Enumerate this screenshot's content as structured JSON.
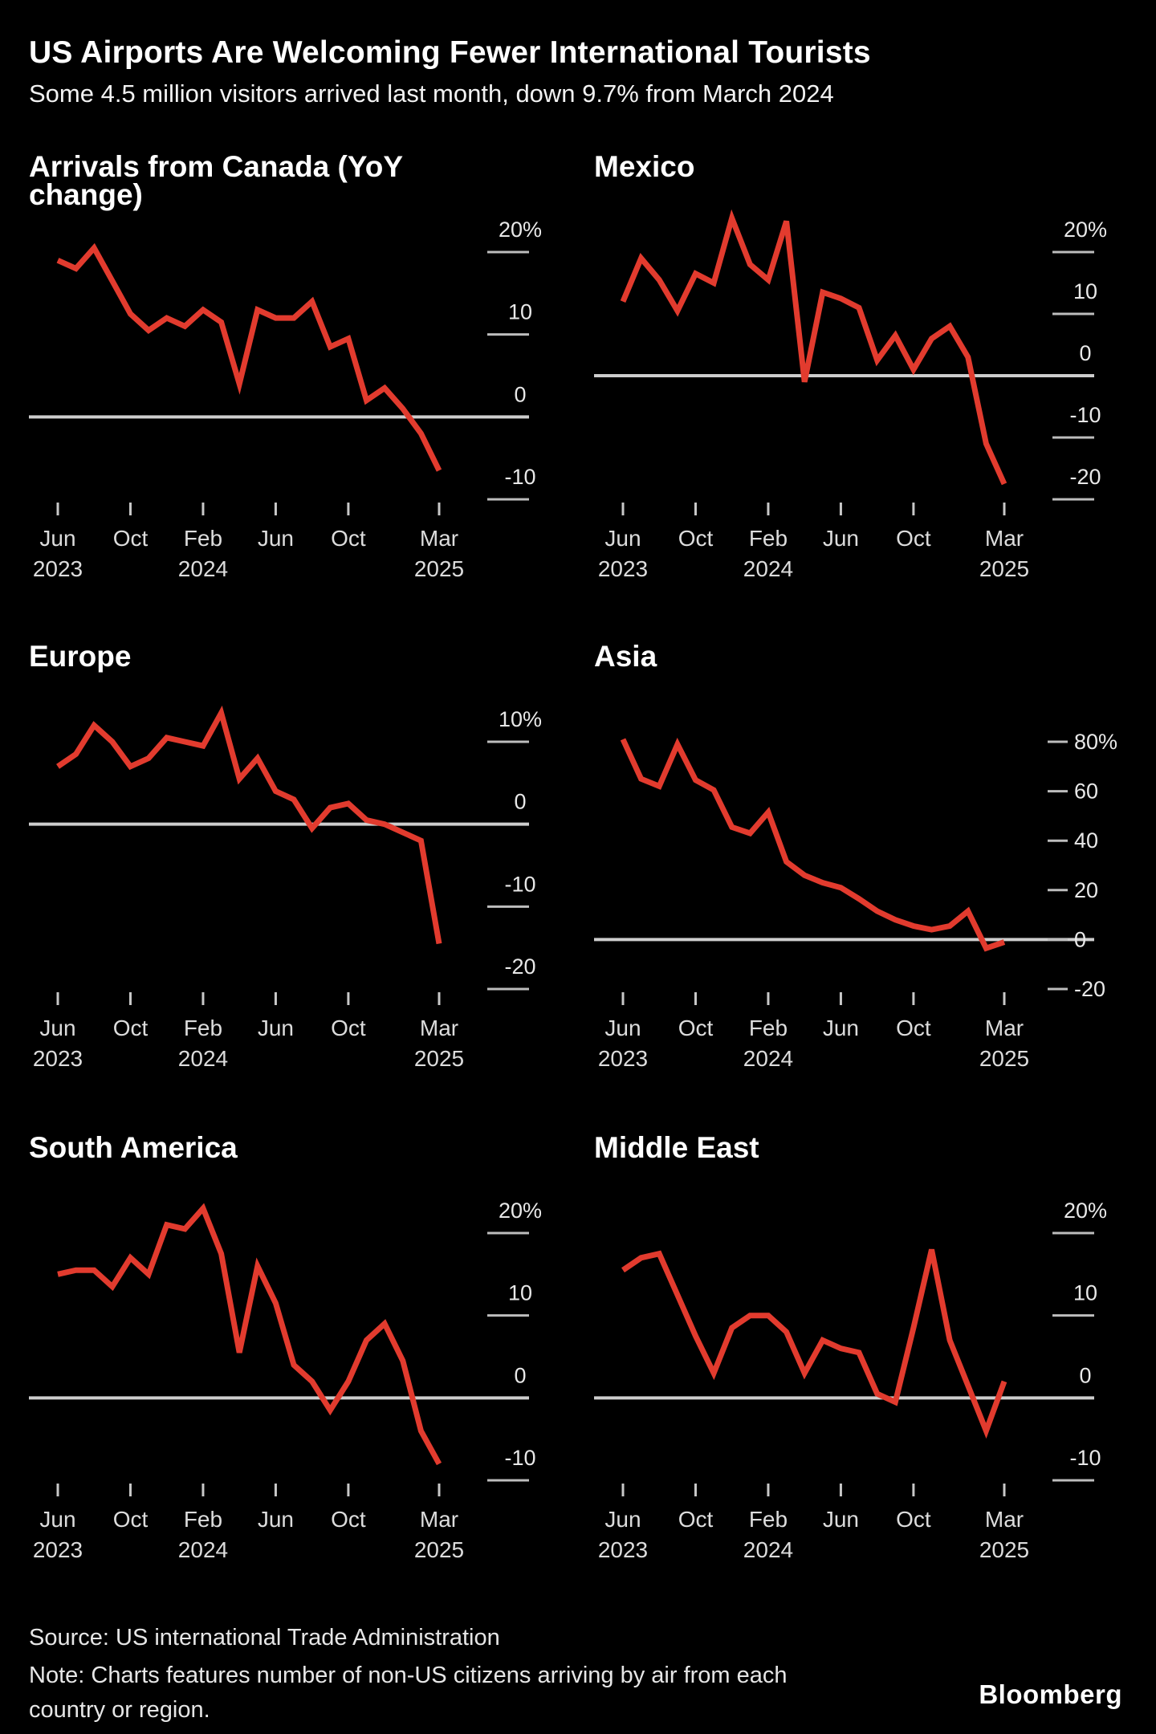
{
  "header": {
    "title": "US Airports Are Welcoming Fewer International Tourists",
    "subtitle": "Some 4.5 million visitors arrived last month, down 9.7% from March 2024"
  },
  "colors": {
    "background": "#000000",
    "line_red": "#e23b2e",
    "zero_line": "#cdcdcd",
    "grid_dash": "#bdbdbd",
    "axis_text": "#e8e8e8",
    "x_text": "#dcdcdc"
  },
  "x_axis": {
    "months": [
      "Jun 2023",
      "Jul 2023",
      "Aug 2023",
      "Sep 2023",
      "Oct 2023",
      "Nov 2023",
      "Dec 2023",
      "Jan 2024",
      "Feb 2024",
      "Mar 2024",
      "Apr 2024",
      "May 2024",
      "Jun 2024",
      "Jul 2024",
      "Aug 2024",
      "Sep 2024",
      "Oct 2024",
      "Nov 2024",
      "Dec 2024",
      "Jan 2025",
      "Feb 2025",
      "Mar 2025"
    ],
    "ticks": [
      {
        "month": "Jun",
        "year": "2023",
        "index": 0
      },
      {
        "month": "Oct",
        "year": "",
        "index": 4
      },
      {
        "month": "Feb",
        "year": "2024",
        "index": 8
      },
      {
        "month": "Jun",
        "year": "",
        "index": 12
      },
      {
        "month": "Oct",
        "year": "",
        "index": 16
      },
      {
        "month": "Mar",
        "year": "2025",
        "index": 21
      }
    ]
  },
  "chart_data": [
    {
      "id": "canada",
      "type": "line",
      "title": "Arrivals from Canada (YoY\nchange)",
      "y_label_style": "below",
      "ylim": [
        -10,
        20
      ],
      "y_ticks": [
        {
          "value": 20,
          "label": "20%"
        },
        {
          "value": 10,
          "label": "10"
        },
        {
          "value": 0,
          "label": "0"
        },
        {
          "value": -10,
          "label": "-10"
        }
      ],
      "values": [
        19,
        18,
        20.5,
        16.5,
        12.5,
        10.5,
        12,
        11,
        13,
        11.5,
        4,
        13,
        12,
        12,
        14,
        8.5,
        9.5,
        2,
        3.5,
        1,
        -2,
        -6.5
      ]
    },
    {
      "id": "mexico",
      "type": "line",
      "title": "Mexico",
      "y_label_style": "below",
      "ylim": [
        -20,
        20
      ],
      "y_ticks": [
        {
          "value": 20,
          "label": "20%"
        },
        {
          "value": 10,
          "label": "10"
        },
        {
          "value": 0,
          "label": "0"
        },
        {
          "value": -10,
          "label": "-10"
        },
        {
          "value": -20,
          "label": "-20"
        }
      ],
      "values": [
        12,
        19,
        15.5,
        10.5,
        16.5,
        15,
        25.5,
        18,
        15.5,
        25,
        -1,
        13.5,
        12.5,
        11,
        2.5,
        6.5,
        1,
        6,
        8,
        3,
        -11,
        -17.5
      ]
    },
    {
      "id": "europe",
      "type": "line",
      "title": "Europe",
      "y_label_style": "below",
      "ylim": [
        -20,
        10
      ],
      "y_ticks": [
        {
          "value": 10,
          "label": "10%"
        },
        {
          "value": 0,
          "label": "0"
        },
        {
          "value": -10,
          "label": "-10"
        },
        {
          "value": -20,
          "label": "-20"
        }
      ],
      "values": [
        7,
        8.5,
        12,
        10,
        7,
        8,
        10.5,
        10,
        9.5,
        13.5,
        5.5,
        8,
        4,
        3,
        -0.5,
        2,
        2.5,
        0.5,
        0,
        -1,
        -2,
        -14.5
      ]
    },
    {
      "id": "asia",
      "type": "line",
      "title": "Asia",
      "y_label_style": "inline",
      "ylim": [
        -20,
        80
      ],
      "y_ticks": [
        {
          "value": 80,
          "label": "80%"
        },
        {
          "value": 60,
          "label": "60"
        },
        {
          "value": 40,
          "label": "40"
        },
        {
          "value": 20,
          "label": "20"
        },
        {
          "value": 0,
          "label": "0"
        },
        {
          "value": -20,
          "label": "-20"
        }
      ],
      "values": [
        81,
        65,
        62,
        79,
        64.5,
        60.5,
        45.5,
        43,
        51.5,
        31.5,
        26,
        23,
        21,
        16.5,
        11.5,
        8,
        5.5,
        4,
        5.5,
        11.5,
        -3.5,
        -1
      ]
    },
    {
      "id": "south-america",
      "type": "line",
      "title": "South America",
      "y_label_style": "below",
      "ylim": [
        -10,
        20
      ],
      "y_ticks": [
        {
          "value": 20,
          "label": "20%"
        },
        {
          "value": 10,
          "label": "10"
        },
        {
          "value": 0,
          "label": "0"
        },
        {
          "value": -10,
          "label": "-10"
        }
      ],
      "values": [
        15,
        15.5,
        15.5,
        13.5,
        17,
        15,
        21,
        20.5,
        23,
        17.5,
        5.5,
        16,
        11.5,
        4,
        2,
        -1.5,
        2,
        7,
        9,
        4.5,
        -4,
        -8
      ]
    },
    {
      "id": "middle-east",
      "type": "line",
      "title": "Middle East",
      "y_label_style": "below",
      "ylim": [
        -10,
        20
      ],
      "y_ticks": [
        {
          "value": 20,
          "label": "20%"
        },
        {
          "value": 10,
          "label": "10"
        },
        {
          "value": 0,
          "label": "0"
        },
        {
          "value": -10,
          "label": "-10"
        }
      ],
      "values": [
        15.5,
        17,
        17.5,
        12.5,
        7.5,
        3,
        8.5,
        10,
        10,
        8,
        3,
        7,
        6,
        5.5,
        0.5,
        -0.5,
        8.5,
        18,
        7,
        1.5,
        -4,
        2
      ]
    }
  ],
  "footer": {
    "source": "Source: US international Trade Administration",
    "note": "Note: Charts features number of non-US citizens arriving by air from each\ncountry or region.",
    "brand": "Bloomberg"
  }
}
